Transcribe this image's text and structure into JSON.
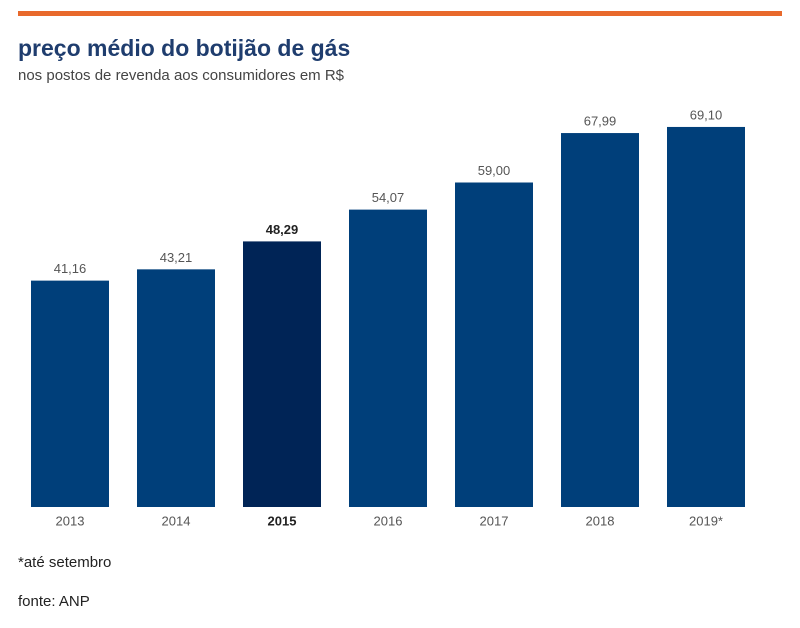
{
  "chart_data": {
    "type": "bar",
    "title": "preço médio do botijão de gás",
    "subtitle": "nos postos de revenda aos consumidores em R$",
    "categories": [
      "2013",
      "2014",
      "2015",
      "2016",
      "2017",
      "2018",
      "2019*"
    ],
    "values": [
      41.16,
      43.21,
      48.29,
      54.07,
      59.0,
      67.99,
      69.1
    ],
    "value_labels": [
      "41,16",
      "43,21",
      "48,29",
      "54,07",
      "59,00",
      "67,99",
      "69,10"
    ],
    "color": "#003f7a",
    "colors": [
      "#003f7a",
      "#003f7a",
      "#002456",
      "#003f7a",
      "#003f7a",
      "#003f7a",
      "#003f7a"
    ],
    "ylim": [
      0,
      70
    ],
    "footnote": "*até setembro",
    "source": "fonte: ANP"
  }
}
